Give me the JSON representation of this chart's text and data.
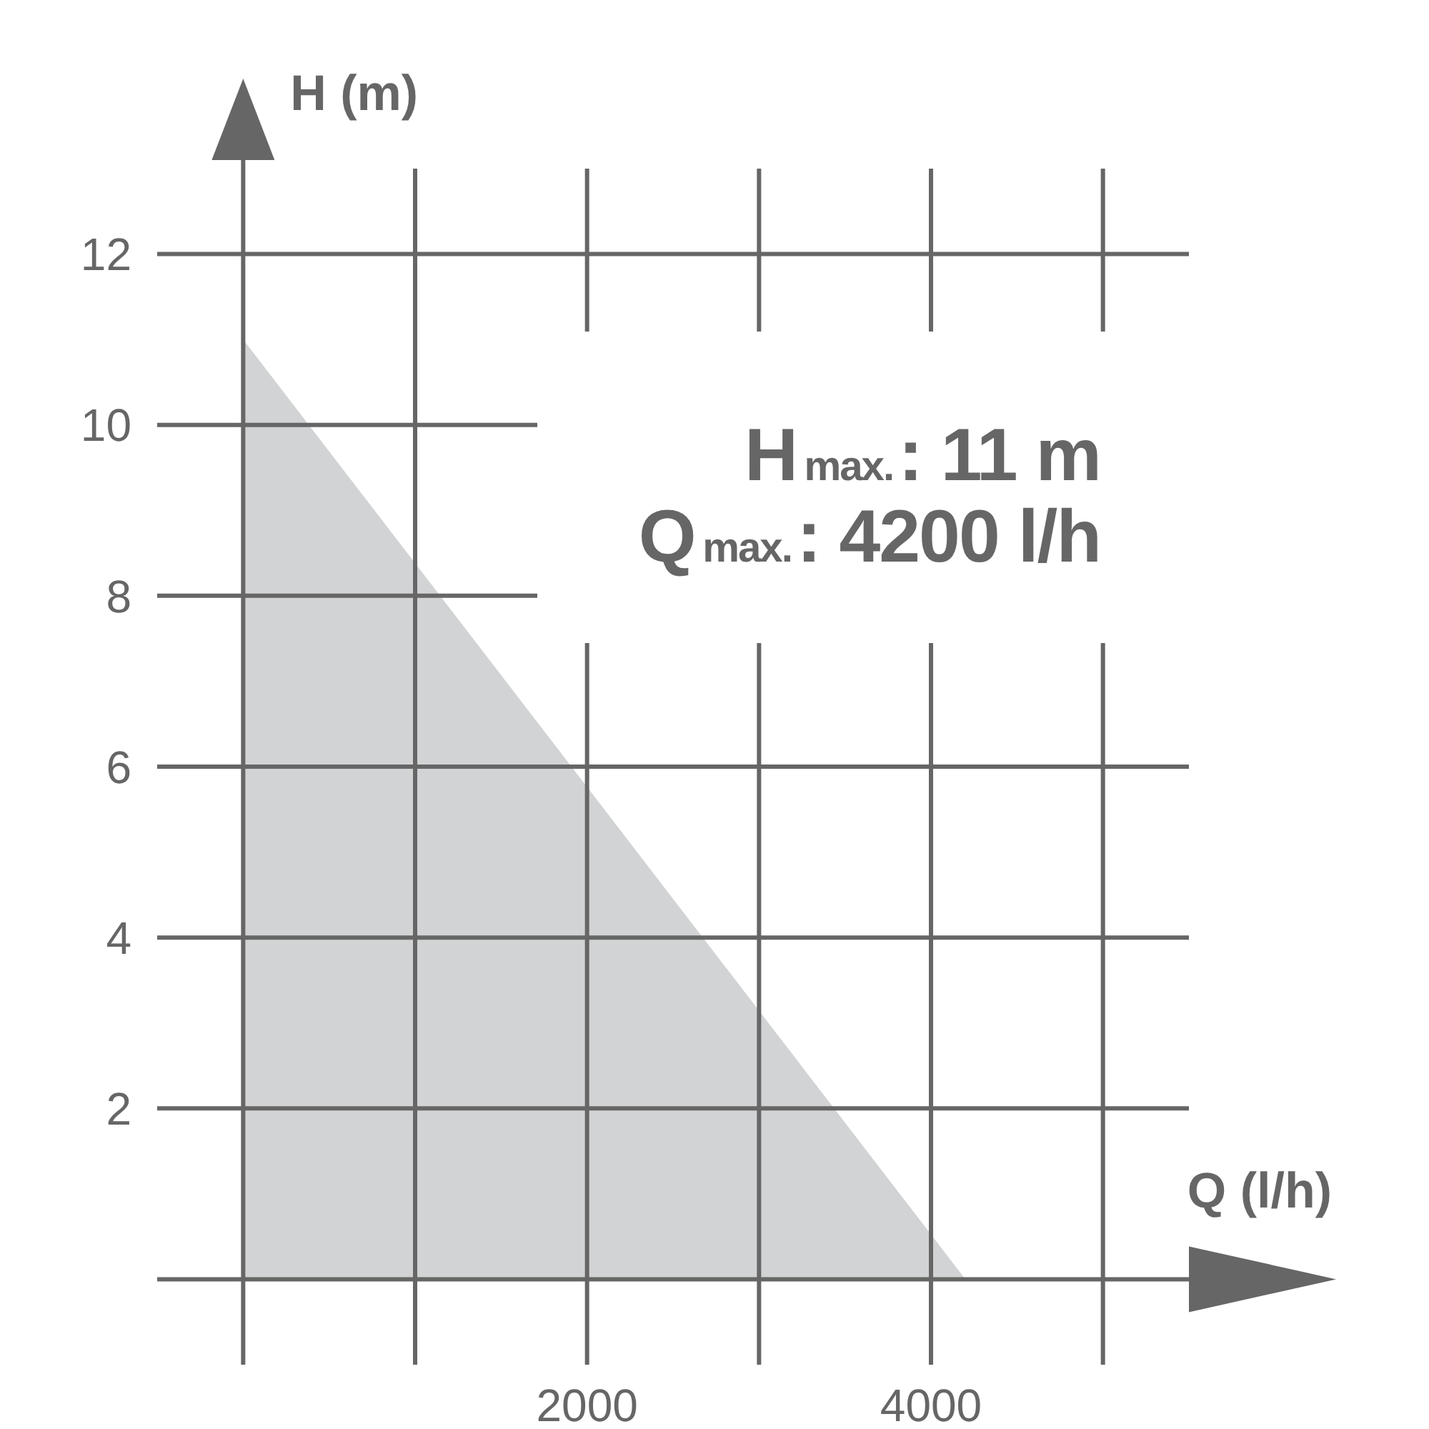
{
  "chart_data": {
    "type": "area",
    "xlabel": "Q (l/h)",
    "ylabel": "H (m)",
    "annotations": [
      "H$_{max.}$: 11 m",
      "Q$_{max.}$: 4200 l/h"
    ],
    "x": [
      0,
      4200
    ],
    "series": [
      {
        "color": "#d1d3d4",
        "values": [
          11,
          0
        ]
      }
    ],
    "xlim": [
      -500,
      5500
    ],
    "ylim": [
      -1,
      13
    ],
    "xticks": [
      {
        "value": 0,
        "label": null
      },
      {
        "value": 1000,
        "label": null
      },
      2000,
      {
        "value": 3000,
        "label": null
      },
      4000,
      {
        "value": 5000,
        "label": null
      }
    ],
    "yticks": [
      {
        "value": 0,
        "label": null
      },
      2,
      4,
      6,
      8,
      10,
      12
    ],
    "grid": true
  }
}
